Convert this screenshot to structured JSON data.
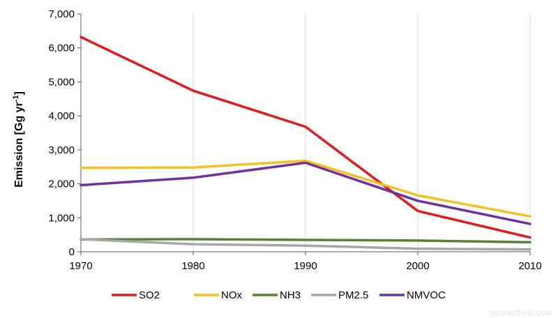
{
  "chart_data": {
    "type": "line",
    "ylabel": "Emission [Gg yr",
    "ylabel_sup": "-1",
    "ylabel_close": "]",
    "x": [
      1970,
      1980,
      1990,
      2000,
      2010
    ],
    "xticks": [
      "1970",
      "1980",
      "1990",
      "2000",
      "2010"
    ],
    "xlim": [
      1970,
      2010
    ],
    "ylim": [
      0,
      7000
    ],
    "yticks": [
      0,
      1000,
      2000,
      3000,
      4000,
      5000,
      6000,
      7000
    ],
    "ytick_labels": [
      "0",
      "1,000",
      "2,000",
      "3,000",
      "4,000",
      "5,000",
      "6,000",
      "7,000"
    ],
    "grid": "vertical",
    "legend_position": "bottom",
    "series": [
      {
        "name": "SO2",
        "color": "#e31a1c",
        "values": [
          6320,
          4740,
          3680,
          1200,
          420
        ]
      },
      {
        "name": "NOx",
        "color": "#f5c11e",
        "values": [
          2470,
          2480,
          2680,
          1660,
          1040
        ]
      },
      {
        "name": "NH3",
        "color": "#538135",
        "values": [
          360,
          370,
          350,
          330,
          280
        ]
      },
      {
        "name": "PM2.5",
        "color": "#a6a6a6",
        "values": [
          370,
          220,
          180,
          90,
          70
        ]
      },
      {
        "name": "NMVOC",
        "color": "#7030a0",
        "values": [
          1960,
          2180,
          2620,
          1500,
          820
        ]
      }
    ]
  },
  "watermark": "SCIENCEAQ.COM"
}
